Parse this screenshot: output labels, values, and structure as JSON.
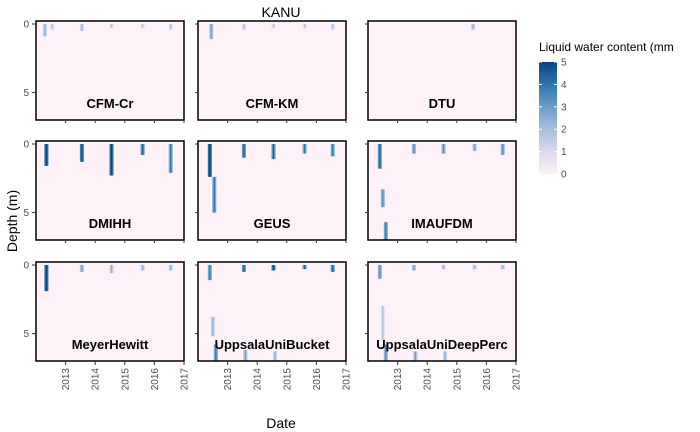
{
  "chart_data": {
    "type": "heatmap",
    "title": "KANU",
    "xlabel": "Date",
    "ylabel": "Depth (m)",
    "x_ticks": [
      "2013",
      "2014",
      "2015",
      "2016",
      "2017"
    ],
    "y_ticks": [
      0,
      5
    ],
    "ylim": [
      7,
      0
    ],
    "legend": {
      "title": "Liquid water content (mm",
      "ticks": [
        0,
        1,
        2,
        3,
        4,
        5
      ],
      "color_low": "#fdf2f7",
      "color_high": "#08467f",
      "placement": "right"
    },
    "panels": [
      {
        "name": "CFM-Cr",
        "features": [
          {
            "t": 2012.3,
            "d0": 0.0,
            "d1": 0.9,
            "v": 1.5
          },
          {
            "t": 2012.55,
            "d0": 0.0,
            "d1": 0.4,
            "v": 1.0
          },
          {
            "t": 2013.55,
            "d0": 0.0,
            "d1": 0.5,
            "v": 1.2
          },
          {
            "t": 2014.55,
            "d0": 0.0,
            "d1": 0.3,
            "v": 1.0
          },
          {
            "t": 2015.6,
            "d0": 0.0,
            "d1": 0.3,
            "v": 0.9
          },
          {
            "t": 2016.55,
            "d0": 0.0,
            "d1": 0.4,
            "v": 1.0
          }
        ]
      },
      {
        "name": "CFM-KM",
        "features": [
          {
            "t": 2012.45,
            "d0": 0.0,
            "d1": 1.1,
            "v": 2.0
          },
          {
            "t": 2013.55,
            "d0": 0.0,
            "d1": 0.4,
            "v": 1.0
          },
          {
            "t": 2014.55,
            "d0": 0.0,
            "d1": 0.3,
            "v": 0.9
          },
          {
            "t": 2015.6,
            "d0": 0.0,
            "d1": 0.3,
            "v": 0.9
          },
          {
            "t": 2016.55,
            "d0": 0.0,
            "d1": 0.4,
            "v": 1.0
          }
        ]
      },
      {
        "name": "DTU",
        "features": [
          {
            "t": 2015.55,
            "d0": 0.0,
            "d1": 0.4,
            "v": 1.5
          }
        ]
      },
      {
        "name": "DMIHH",
        "features": [
          {
            "t": 2012.35,
            "d0": 0.0,
            "d1": 1.6,
            "v": 4.5
          },
          {
            "t": 2013.55,
            "d0": 0.0,
            "d1": 1.3,
            "v": 4.0
          },
          {
            "t": 2014.55,
            "d0": 0.0,
            "d1": 2.3,
            "v": 4.5
          },
          {
            "t": 2015.6,
            "d0": 0.0,
            "d1": 0.8,
            "v": 3.5
          },
          {
            "t": 2016.55,
            "d0": 0.0,
            "d1": 2.1,
            "v": 3.0
          }
        ]
      },
      {
        "name": "GEUS",
        "features": [
          {
            "t": 2012.4,
            "d0": 0.0,
            "d1": 2.4,
            "v": 4.5
          },
          {
            "t": 2012.55,
            "d0": 2.4,
            "d1": 5.0,
            "v": 3.0
          },
          {
            "t": 2013.55,
            "d0": 0.0,
            "d1": 1.0,
            "v": 3.5
          },
          {
            "t": 2014.55,
            "d0": 0.0,
            "d1": 1.1,
            "v": 3.5
          },
          {
            "t": 2015.6,
            "d0": 0.0,
            "d1": 0.7,
            "v": 3.0
          },
          {
            "t": 2016.55,
            "d0": 0.0,
            "d1": 0.9,
            "v": 3.0
          }
        ]
      },
      {
        "name": "IMAUFDM",
        "features": [
          {
            "t": 2012.4,
            "d0": 0.0,
            "d1": 1.8,
            "v": 3.5
          },
          {
            "t": 2012.5,
            "d0": 3.3,
            "d1": 4.6,
            "v": 2.5
          },
          {
            "t": 2012.6,
            "d0": 5.7,
            "d1": 7.0,
            "v": 3.0
          },
          {
            "t": 2013.55,
            "d0": 0.0,
            "d1": 0.7,
            "v": 2.5
          },
          {
            "t": 2014.55,
            "d0": 0.0,
            "d1": 0.7,
            "v": 2.5
          },
          {
            "t": 2015.6,
            "d0": 0.0,
            "d1": 0.5,
            "v": 2.0
          },
          {
            "t": 2016.55,
            "d0": 0.0,
            "d1": 0.8,
            "v": 2.5
          }
        ]
      },
      {
        "name": "MeyerHewitt",
        "features": [
          {
            "t": 2012.35,
            "d0": 0.0,
            "d1": 1.9,
            "v": 4.5
          },
          {
            "t": 2013.55,
            "d0": 0.0,
            "d1": 0.5,
            "v": 2.0
          },
          {
            "t": 2014.55,
            "d0": 0.0,
            "d1": 0.6,
            "v": 1.5
          },
          {
            "t": 2015.6,
            "d0": 0.0,
            "d1": 0.4,
            "v": 1.5
          },
          {
            "t": 2016.55,
            "d0": 0.0,
            "d1": 0.4,
            "v": 1.5
          }
        ]
      },
      {
        "name": "UppsalaUniBucket",
        "features": [
          {
            "t": 2012.4,
            "d0": 0.0,
            "d1": 1.1,
            "v": 3.0
          },
          {
            "t": 2012.5,
            "d0": 3.8,
            "d1": 5.2,
            "v": 1.5
          },
          {
            "t": 2012.6,
            "d0": 5.8,
            "d1": 7.0,
            "v": 3.0
          },
          {
            "t": 2013.55,
            "d0": 0.0,
            "d1": 0.5,
            "v": 3.5
          },
          {
            "t": 2013.6,
            "d0": 6.2,
            "d1": 7.0,
            "v": 2.0
          },
          {
            "t": 2014.55,
            "d0": 0.0,
            "d1": 0.4,
            "v": 4.0
          },
          {
            "t": 2014.6,
            "d0": 6.3,
            "d1": 7.0,
            "v": 1.5
          },
          {
            "t": 2015.6,
            "d0": 0.0,
            "d1": 0.3,
            "v": 3.5
          },
          {
            "t": 2016.55,
            "d0": 0.0,
            "d1": 0.5,
            "v": 3.5
          }
        ]
      },
      {
        "name": "UppsalaUniDeepPerc",
        "features": [
          {
            "t": 2012.4,
            "d0": 0.0,
            "d1": 1.0,
            "v": 2.5
          },
          {
            "t": 2012.5,
            "d0": 3.0,
            "d1": 5.5,
            "v": 1.0
          },
          {
            "t": 2012.6,
            "d0": 5.8,
            "d1": 7.0,
            "v": 2.5
          },
          {
            "t": 2013.55,
            "d0": 0.0,
            "d1": 0.4,
            "v": 2.0
          },
          {
            "t": 2013.6,
            "d0": 6.3,
            "d1": 7.0,
            "v": 2.0
          },
          {
            "t": 2014.55,
            "d0": 0.0,
            "d1": 0.3,
            "v": 1.5
          },
          {
            "t": 2014.6,
            "d0": 6.3,
            "d1": 7.0,
            "v": 1.5
          },
          {
            "t": 2015.6,
            "d0": 0.0,
            "d1": 0.3,
            "v": 1.5
          },
          {
            "t": 2016.55,
            "d0": 0.0,
            "d1": 0.3,
            "v": 1.5
          }
        ]
      }
    ]
  }
}
